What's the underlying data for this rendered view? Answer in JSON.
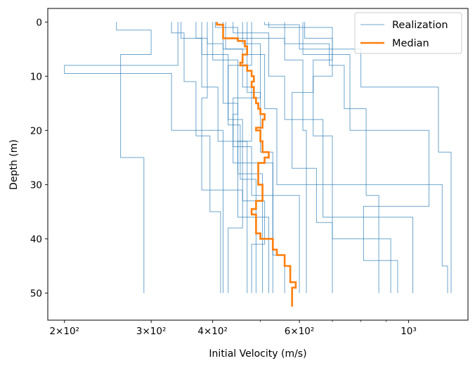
{
  "chart_data": {
    "type": "line",
    "title": "",
    "xlabel": "Initial Velocity (m/s)",
    "ylabel": "Depth (m)",
    "xscale": "log",
    "xlim": [
      185,
      1320
    ],
    "ylim": [
      55,
      -2.5
    ],
    "y_inverted": true,
    "grid": false,
    "legend_location": "upper right",
    "x_ticks": [
      {
        "value": 200,
        "label": "2×10²"
      },
      {
        "value": 300,
        "label": "3×10²"
      },
      {
        "value": 400,
        "label": "4×10²"
      },
      {
        "value": 600,
        "label": "6×10²"
      },
      {
        "value": 1000,
        "label": "10³"
      }
    ],
    "y_ticks": [
      0,
      10,
      20,
      30,
      40,
      50
    ],
    "colors": {
      "realization": "#1f77b4",
      "median": "#ff7f0e"
    },
    "series": [
      {
        "name": "Realization",
        "style": "step",
        "realizations": [
          [
            [
              255,
              0
            ],
            [
              255,
              1.5
            ],
            [
              300,
              1.5
            ],
            [
              300,
              6
            ],
            [
              260,
              6
            ],
            [
              260,
              25
            ],
            [
              290,
              25
            ],
            [
              290,
              50
            ]
          ],
          [
            [
              330,
              0
            ],
            [
              330,
              2
            ],
            [
              340,
              2
            ],
            [
              340,
              8
            ],
            [
              200,
              8
            ],
            [
              200,
              9.5
            ],
            [
              330,
              9.5
            ],
            [
              330,
              20
            ],
            [
              420,
              20
            ],
            [
              420,
              50
            ]
          ],
          [
            [
              345,
              0
            ],
            [
              345,
              3
            ],
            [
              380,
              3
            ],
            [
              380,
              12
            ],
            [
              410,
              12
            ],
            [
              410,
              22
            ],
            [
              470,
              22
            ],
            [
              470,
              50
            ]
          ],
          [
            [
              390,
              0
            ],
            [
              390,
              4
            ],
            [
              420,
              4
            ],
            [
              420,
              15
            ],
            [
              450,
              15
            ],
            [
              450,
              28
            ],
            [
              505,
              28
            ],
            [
              505,
              50
            ]
          ],
          [
            [
              405,
              0
            ],
            [
              405,
              1
            ],
            [
              450,
              1
            ],
            [
              450,
              3
            ],
            [
              560,
              3
            ],
            [
              560,
              7
            ],
            [
              610,
              7
            ],
            [
              610,
              20
            ],
            [
              620,
              20
            ],
            [
              620,
              50
            ]
          ],
          [
            [
              425,
              0
            ],
            [
              425,
              5
            ],
            [
              470,
              5
            ],
            [
              470,
              13
            ],
            [
              500,
              13
            ],
            [
              500,
              24
            ],
            [
              530,
              24
            ],
            [
              530,
              50
            ]
          ],
          [
            [
              440,
              0
            ],
            [
              440,
              2
            ],
            [
              520,
              2
            ],
            [
              520,
              10
            ],
            [
              560,
              10
            ],
            [
              560,
              18
            ],
            [
              670,
              18
            ],
            [
              670,
              36
            ],
            [
              1020,
              36
            ],
            [
              1020,
              50
            ]
          ],
          [
            [
              470,
              0
            ],
            [
              470,
              6
            ],
            [
              510,
              6
            ],
            [
              510,
              16
            ],
            [
              540,
              16
            ],
            [
              540,
              30
            ],
            [
              1170,
              30
            ],
            [
              1170,
              45
            ],
            [
              1200,
              45
            ],
            [
              1200,
              50
            ]
          ],
          [
            [
              510,
              0
            ],
            [
              510,
              0.5
            ],
            [
              600,
              0.5
            ],
            [
              600,
              5
            ],
            [
              800,
              5
            ],
            [
              800,
              12
            ],
            [
              1150,
              12
            ],
            [
              1150,
              24
            ],
            [
              1220,
              24
            ],
            [
              1220,
              35
            ],
            [
              1220,
              50
            ]
          ],
          [
            [
              560,
              0
            ],
            [
              560,
              4
            ],
            [
              690,
              4
            ],
            [
              690,
              8
            ],
            [
              740,
              8
            ],
            [
              740,
              16
            ],
            [
              820,
              16
            ],
            [
              820,
              32
            ],
            [
              870,
              32
            ],
            [
              870,
              50
            ]
          ],
          [
            [
              615,
              0
            ],
            [
              615,
              3
            ],
            [
              700,
              3
            ],
            [
              700,
              10
            ],
            [
              640,
              10
            ],
            [
              640,
              21
            ],
            [
              700,
              21
            ],
            [
              700,
              40
            ],
            [
              920,
              40
            ],
            [
              920,
              50
            ]
          ],
          [
            [
              610,
              0
            ],
            [
              610,
              6
            ],
            [
              760,
              6
            ],
            [
              760,
              20
            ],
            [
              1100,
              20
            ],
            [
              1100,
              34
            ],
            [
              810,
              34
            ],
            [
              810,
              44
            ],
            [
              950,
              44
            ],
            [
              950,
              50
            ]
          ],
          [
            [
              480,
              0
            ],
            [
              480,
              8
            ],
            [
              430,
              8
            ],
            [
              430,
              19
            ],
            [
              455,
              19
            ],
            [
              455,
              29
            ],
            [
              490,
              29
            ],
            [
              490,
              50
            ]
          ],
          [
            [
              400,
              0
            ],
            [
              400,
              7
            ],
            [
              450,
              7
            ],
            [
              450,
              17
            ],
            [
              440,
              17
            ],
            [
              440,
              26
            ],
            [
              530,
              26
            ],
            [
              530,
              43
            ],
            [
              560,
              43
            ],
            [
              560,
              50
            ]
          ],
          [
            [
              370,
              0
            ],
            [
              370,
              3
            ],
            [
              390,
              3
            ],
            [
              390,
              14
            ],
            [
              380,
              14
            ],
            [
              380,
              31
            ],
            [
              460,
              31
            ],
            [
              460,
              38
            ],
            [
              430,
              38
            ],
            [
              430,
              50
            ]
          ],
          [
            [
              340,
              0
            ],
            [
              340,
              2
            ],
            [
              350,
              2
            ],
            [
              350,
              11
            ],
            [
              370,
              11
            ],
            [
              370,
              21
            ],
            [
              395,
              21
            ],
            [
              395,
              35
            ],
            [
              415,
              35
            ],
            [
              415,
              50
            ]
          ],
          [
            [
              460,
              0
            ],
            [
              460,
              4
            ],
            [
              500,
              4
            ],
            [
              500,
              14
            ],
            [
              440,
              14
            ],
            [
              440,
              23
            ],
            [
              480,
              23
            ],
            [
              480,
              32
            ],
            [
              600,
              32
            ],
            [
              600,
              50
            ]
          ],
          [
            [
              520,
              0
            ],
            [
              520,
              1
            ],
            [
              700,
              1
            ],
            [
              700,
              7
            ],
            [
              640,
              7
            ],
            [
              640,
              13
            ],
            [
              580,
              13
            ],
            [
              580,
              27
            ],
            [
              650,
              27
            ],
            [
              650,
              37
            ],
            [
              700,
              37
            ],
            [
              700,
              50
            ]
          ],
          [
            [
              380,
              0
            ],
            [
              380,
              6
            ],
            [
              430,
              6
            ],
            [
              430,
              18
            ],
            [
              460,
              18
            ],
            [
              460,
              33
            ],
            [
              510,
              33
            ],
            [
              510,
              41
            ],
            [
              480,
              41
            ],
            [
              480,
              50
            ]
          ],
          [
            [
              420,
              0
            ],
            [
              420,
              5
            ],
            [
              460,
              5
            ],
            [
              460,
              12
            ],
            [
              480,
              12
            ],
            [
              480,
              22
            ],
            [
              450,
              22
            ],
            [
              450,
              36
            ],
            [
              520,
              36
            ],
            [
              520,
              50
            ]
          ]
        ]
      },
      {
        "name": "Median",
        "style": "step",
        "points": [
          [
            408,
            0
          ],
          [
            408,
            0.5
          ],
          [
            420,
            0.5
          ],
          [
            420,
            3
          ],
          [
            450,
            3
          ],
          [
            450,
            3.5
          ],
          [
            465,
            3.5
          ],
          [
            465,
            4.5
          ],
          [
            470,
            4.5
          ],
          [
            470,
            6
          ],
          [
            460,
            6
          ],
          [
            460,
            7.5
          ],
          [
            455,
            7.5
          ],
          [
            455,
            8
          ],
          [
            470,
            8
          ],
          [
            470,
            9
          ],
          [
            480,
            9
          ],
          [
            480,
            10
          ],
          [
            485,
            10
          ],
          [
            485,
            11
          ],
          [
            480,
            11
          ],
          [
            480,
            12
          ],
          [
            485,
            12
          ],
          [
            485,
            14
          ],
          [
            490,
            14
          ],
          [
            490,
            15
          ],
          [
            495,
            15
          ],
          [
            495,
            16
          ],
          [
            500,
            16
          ],
          [
            500,
            17
          ],
          [
            510,
            17
          ],
          [
            510,
            18
          ],
          [
            505,
            18
          ],
          [
            505,
            19.5
          ],
          [
            490,
            19.5
          ],
          [
            490,
            20
          ],
          [
            500,
            20
          ],
          [
            500,
            22
          ],
          [
            505,
            22
          ],
          [
            505,
            24
          ],
          [
            520,
            24
          ],
          [
            520,
            25
          ],
          [
            510,
            25
          ],
          [
            510,
            26
          ],
          [
            495,
            26
          ],
          [
            495,
            30
          ],
          [
            505,
            30
          ],
          [
            505,
            33
          ],
          [
            490,
            33
          ],
          [
            490,
            34.5
          ],
          [
            480,
            34.5
          ],
          [
            480,
            35.5
          ],
          [
            490,
            35.5
          ],
          [
            490,
            39
          ],
          [
            500,
            39
          ],
          [
            500,
            40
          ],
          [
            530,
            40
          ],
          [
            530,
            42
          ],
          [
            540,
            42
          ],
          [
            540,
            43
          ],
          [
            560,
            43
          ],
          [
            560,
            45
          ],
          [
            575,
            45
          ],
          [
            575,
            48
          ],
          [
            590,
            48
          ],
          [
            590,
            49
          ],
          [
            580,
            49
          ],
          [
            580,
            52.5
          ]
        ]
      }
    ]
  }
}
